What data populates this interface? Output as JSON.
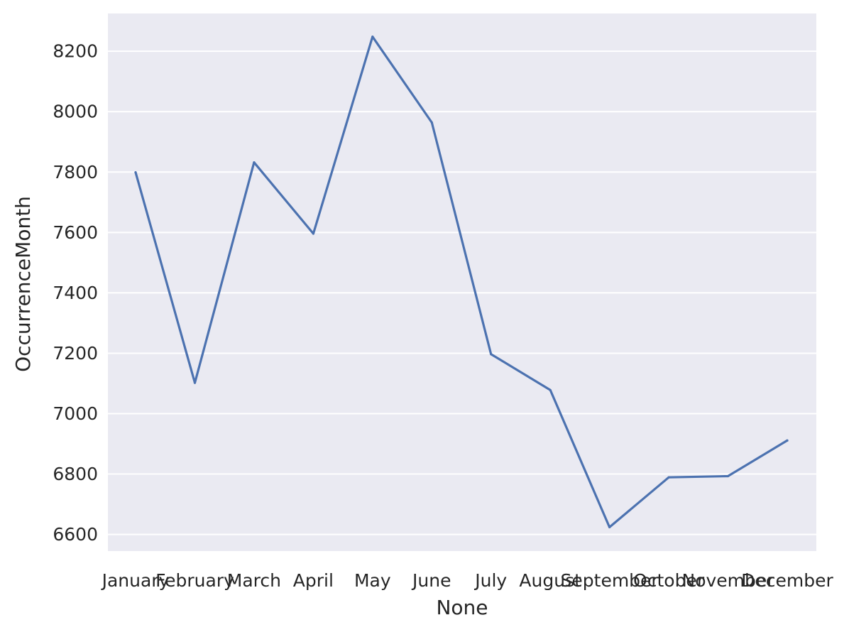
{
  "chart_data": {
    "type": "line",
    "xlabel": "None",
    "ylabel": "OccurrenceMonth",
    "categories": [
      "January",
      "February",
      "March",
      "April",
      "May",
      "June",
      "July",
      "August",
      "September",
      "October",
      "November",
      "December"
    ],
    "series": [
      {
        "values": [
          7799,
          7102,
          7832,
          7596,
          8248,
          7964,
          7197,
          7078,
          6624,
          6789,
          6793,
          6911
        ],
        "color": "#4c72b0"
      }
    ],
    "ylim": [
      6545,
      8325
    ],
    "yticks": [
      6600,
      6800,
      7000,
      7200,
      7400,
      7600,
      7800,
      8000,
      8200
    ],
    "ytick_labels": [
      "6600",
      "6800",
      "7000",
      "7200",
      "7400",
      "7600",
      "7800",
      "8000",
      "8200"
    ],
    "grid": true,
    "colors": {
      "plot_background": "#eaeaf2",
      "grid": "#ffffff",
      "text": "#262626"
    }
  }
}
